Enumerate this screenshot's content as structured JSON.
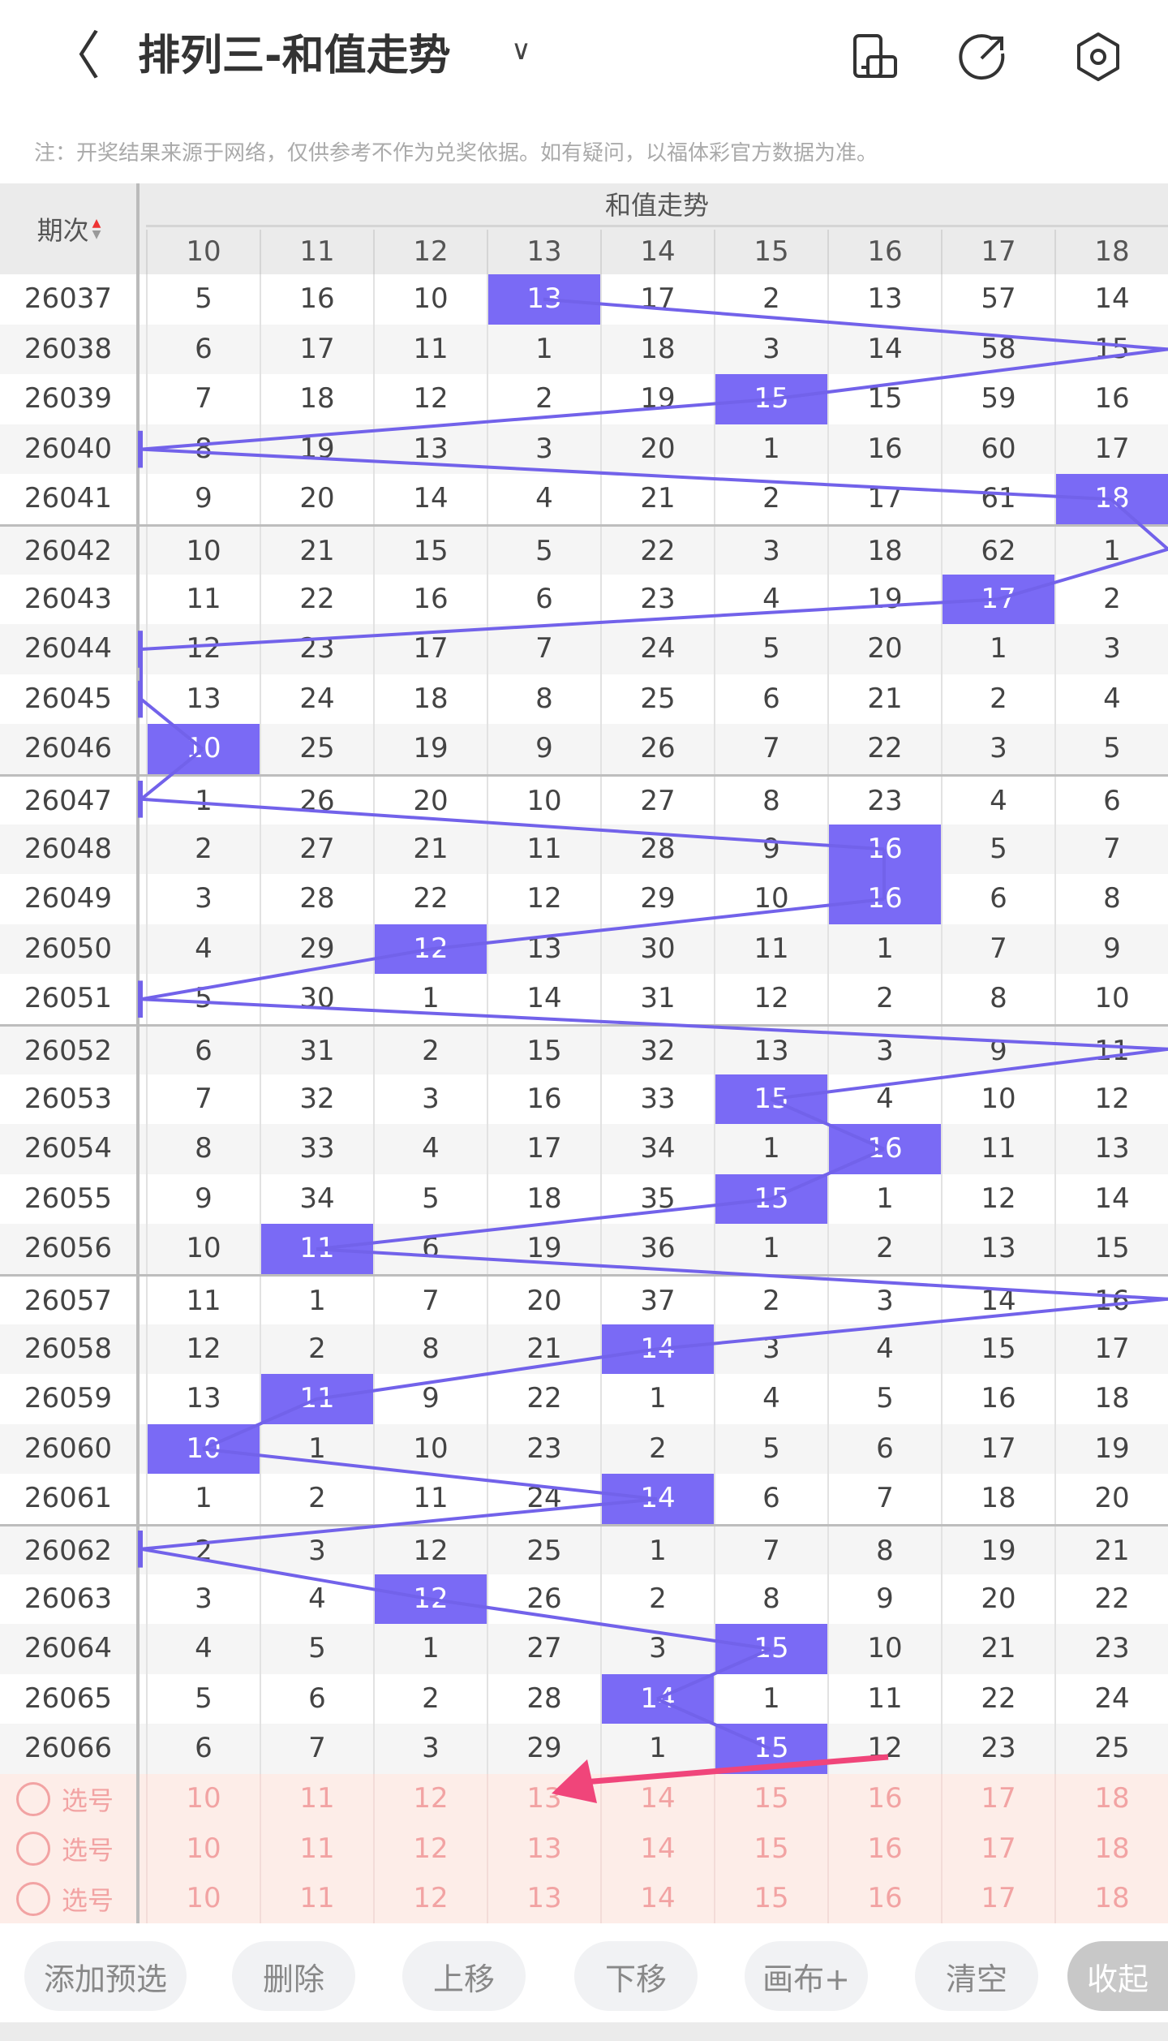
{
  "header": {
    "title": "排列三-和值走势",
    "back_icon": "chevron-left-icon",
    "dropdown_icon": "chevron-down-icon",
    "icons": [
      "phone-layout-icon",
      "share-icon",
      "settings-icon"
    ]
  },
  "note": "注：开奖结果来源于网络，仅供参考不作为兑奖依据。如有疑问，以福体彩官方数据为准。",
  "table": {
    "issue_header": "期次",
    "group_header": "和值走势",
    "columns": [
      "10",
      "11",
      "12",
      "13",
      "14",
      "15",
      "16",
      "17",
      "18"
    ],
    "rows": [
      {
        "issue": "26037",
        "values": [
          5,
          16,
          10,
          13,
          17,
          2,
          13,
          57,
          14
        ],
        "hit": 3
      },
      {
        "issue": "26038",
        "values": [
          6,
          17,
          11,
          1,
          18,
          3,
          14,
          58,
          15
        ],
        "hit": null,
        "miss_side": "right"
      },
      {
        "issue": "26039",
        "values": [
          7,
          18,
          12,
          2,
          19,
          15,
          15,
          59,
          16
        ],
        "hit": 5
      },
      {
        "issue": "26040",
        "values": [
          8,
          19,
          13,
          3,
          20,
          1,
          16,
          60,
          17
        ],
        "hit": null,
        "miss_side": "left"
      },
      {
        "issue": "26041",
        "values": [
          9,
          20,
          14,
          4,
          21,
          2,
          17,
          61,
          18
        ],
        "hit": 8
      },
      {
        "issue": "26042",
        "values": [
          10,
          21,
          15,
          5,
          22,
          3,
          18,
          62,
          1
        ],
        "hit": null,
        "miss_side": "right"
      },
      {
        "issue": "26043",
        "values": [
          11,
          22,
          16,
          6,
          23,
          4,
          19,
          17,
          2
        ],
        "hit": 7
      },
      {
        "issue": "26044",
        "values": [
          12,
          23,
          17,
          7,
          24,
          5,
          20,
          1,
          3
        ],
        "hit": null,
        "miss_side": "left"
      },
      {
        "issue": "26045",
        "values": [
          13,
          24,
          18,
          8,
          25,
          6,
          21,
          2,
          4
        ],
        "hit": null,
        "miss_side": "left"
      },
      {
        "issue": "26046",
        "values": [
          10,
          25,
          19,
          9,
          26,
          7,
          22,
          3,
          5
        ],
        "hit": 0
      },
      {
        "issue": "26047",
        "values": [
          1,
          26,
          20,
          10,
          27,
          8,
          23,
          4,
          6
        ],
        "hit": null,
        "miss_side": "left"
      },
      {
        "issue": "26048",
        "values": [
          2,
          27,
          21,
          11,
          28,
          9,
          16,
          5,
          7
        ],
        "hit": 6
      },
      {
        "issue": "26049",
        "values": [
          3,
          28,
          22,
          12,
          29,
          10,
          16,
          6,
          8
        ],
        "hit": 6
      },
      {
        "issue": "26050",
        "values": [
          4,
          29,
          12,
          13,
          30,
          11,
          1,
          7,
          9
        ],
        "hit": 2
      },
      {
        "issue": "26051",
        "values": [
          5,
          30,
          1,
          14,
          31,
          12,
          2,
          8,
          10
        ],
        "hit": null,
        "miss_side": "left"
      },
      {
        "issue": "26052",
        "values": [
          6,
          31,
          2,
          15,
          32,
          13,
          3,
          9,
          11
        ],
        "hit": null,
        "miss_side": "right"
      },
      {
        "issue": "26053",
        "values": [
          7,
          32,
          3,
          16,
          33,
          15,
          4,
          10,
          12
        ],
        "hit": 5
      },
      {
        "issue": "26054",
        "values": [
          8,
          33,
          4,
          17,
          34,
          1,
          16,
          11,
          13
        ],
        "hit": 6
      },
      {
        "issue": "26055",
        "values": [
          9,
          34,
          5,
          18,
          35,
          15,
          1,
          12,
          14
        ],
        "hit": 5
      },
      {
        "issue": "26056",
        "values": [
          10,
          11,
          6,
          19,
          36,
          1,
          2,
          13,
          15
        ],
        "hit": 1
      },
      {
        "issue": "26057",
        "values": [
          11,
          1,
          7,
          20,
          37,
          2,
          3,
          14,
          16
        ],
        "hit": null,
        "miss_side": "right"
      },
      {
        "issue": "26058",
        "values": [
          12,
          2,
          8,
          21,
          14,
          3,
          4,
          15,
          17
        ],
        "hit": 4
      },
      {
        "issue": "26059",
        "values": [
          13,
          11,
          9,
          22,
          1,
          4,
          5,
          16,
          18
        ],
        "hit": 1
      },
      {
        "issue": "26060",
        "values": [
          10,
          1,
          10,
          23,
          2,
          5,
          6,
          17,
          19
        ],
        "hit": 0
      },
      {
        "issue": "26061",
        "values": [
          1,
          2,
          11,
          24,
          14,
          6,
          7,
          18,
          20
        ],
        "hit": 4
      },
      {
        "issue": "26062",
        "values": [
          2,
          3,
          12,
          25,
          1,
          7,
          8,
          19,
          21
        ],
        "hit": null,
        "miss_side": "left"
      },
      {
        "issue": "26063",
        "values": [
          3,
          4,
          12,
          26,
          2,
          8,
          9,
          20,
          22
        ],
        "hit": 2
      },
      {
        "issue": "26064",
        "values": [
          4,
          5,
          1,
          27,
          3,
          15,
          10,
          21,
          23
        ],
        "hit": 5
      },
      {
        "issue": "26065",
        "values": [
          5,
          6,
          2,
          28,
          14,
          1,
          11,
          22,
          24
        ],
        "hit": 4
      },
      {
        "issue": "26066",
        "values": [
          6,
          7,
          3,
          29,
          1,
          15,
          12,
          23,
          25
        ],
        "hit": 5
      }
    ],
    "selection_rows": [
      {
        "label": "选号",
        "values": [
          "10",
          "11",
          "12",
          "13",
          "14",
          "15",
          "16",
          "17",
          "18"
        ]
      },
      {
        "label": "选号",
        "values": [
          "10",
          "11",
          "12",
          "13",
          "14",
          "15",
          "16",
          "17",
          "18"
        ]
      },
      {
        "label": "选号",
        "values": [
          "10",
          "11",
          "12",
          "13",
          "14",
          "15",
          "16",
          "17",
          "18"
        ]
      }
    ]
  },
  "toolbar": {
    "buttons": [
      "添加预选",
      "删除",
      "上移",
      "下移",
      "画布+",
      "清空",
      "收起"
    ]
  },
  "colors": {
    "hit": "#7a6af5",
    "line": "#7262ea",
    "arrow": "#f0457a",
    "selection_bg": "#fdede8",
    "selection_text": "#f2a3a3"
  }
}
